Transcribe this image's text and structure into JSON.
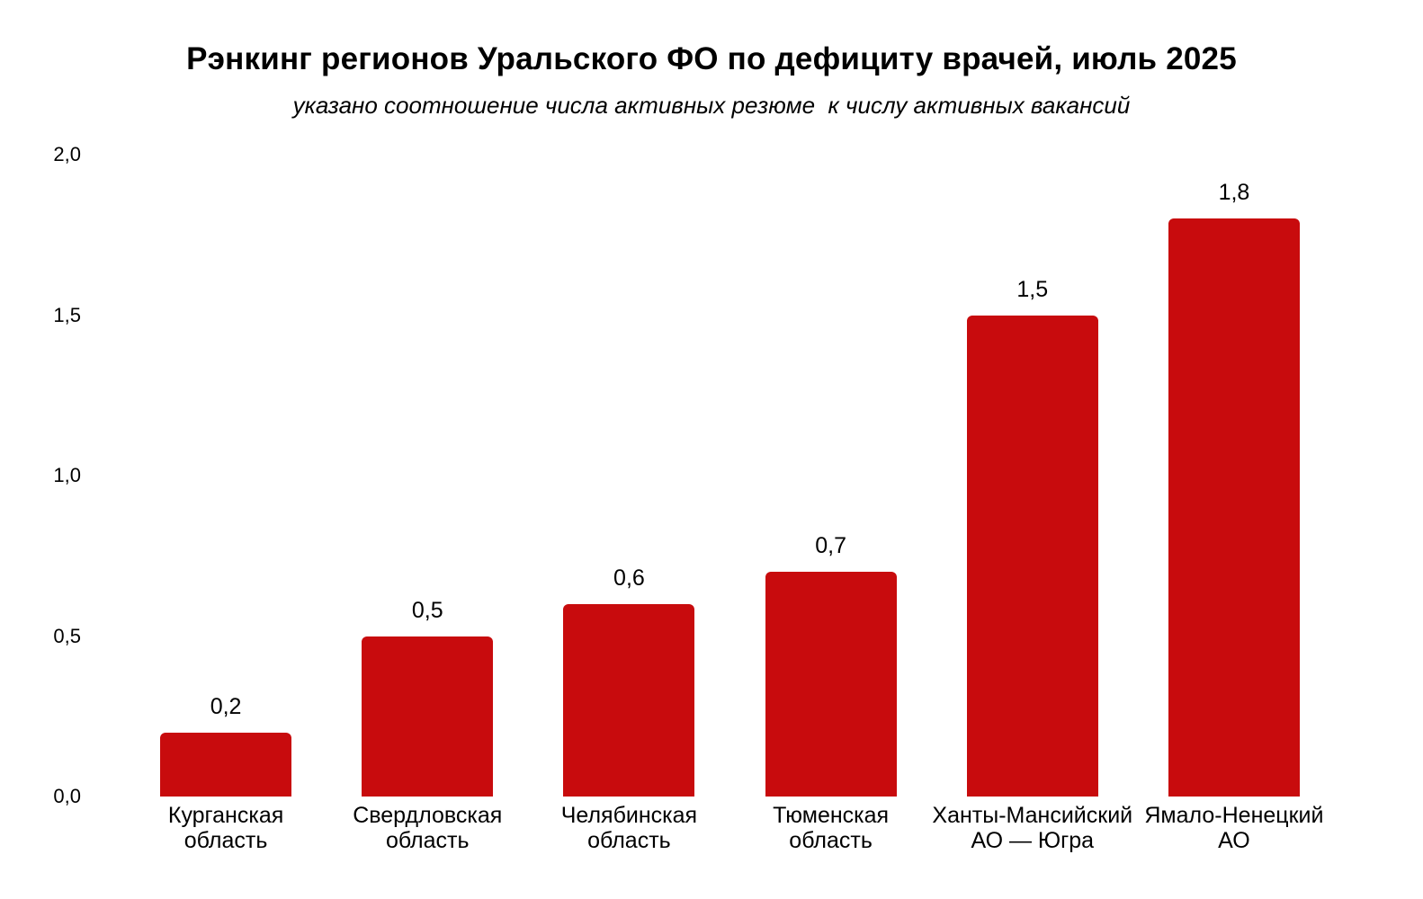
{
  "chart_data": {
    "type": "bar",
    "title": "Рэнкинг регионов Уральского ФО по дефициту врачей, июль 2025",
    "subtitle": "указано соотношение числа активных резюме  к числу активных вакансий",
    "categories": [
      "Курганская\nобласть",
      "Свердловская\nобласть",
      "Челябинская\nобласть",
      "Тюменская\nобласть",
      "Ханты-Мансийский\nАО — Югра",
      "Ямало-Ненецкий\nАО"
    ],
    "values": [
      0.2,
      0.5,
      0.6,
      0.7,
      1.5,
      1.8
    ],
    "value_labels": [
      "0,2",
      "0,5",
      "0,6",
      "0,7",
      "1,5",
      "1,8"
    ],
    "xlabel": "",
    "ylabel": "",
    "ylim": [
      0,
      2
    ],
    "yticks": [
      {
        "value": 2.0,
        "label": "2,0"
      },
      {
        "value": 1.5,
        "label": "1,5"
      },
      {
        "value": 1.0,
        "label": "1,0"
      },
      {
        "value": 0.5,
        "label": "0,5"
      },
      {
        "value": 0.0,
        "label": "0,0"
      }
    ],
    "grid": false,
    "legend": null,
    "bar_color": "#C80B0D",
    "text_color": "#000000",
    "background_color": "#FFFFFF"
  }
}
